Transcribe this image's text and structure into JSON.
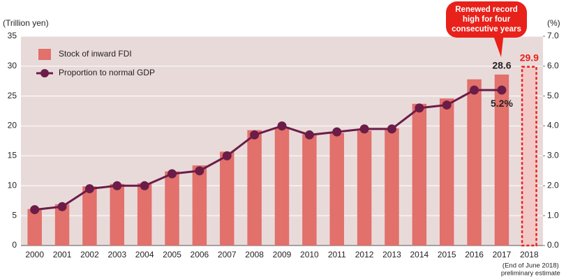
{
  "chart_data": {
    "type": "bar",
    "y_label": "(Trillion yen)",
    "y2_label": "(%)",
    "categories": [
      "2000",
      "2001",
      "2002",
      "2003",
      "2004",
      "2005",
      "2006",
      "2007",
      "2008",
      "2009",
      "2010",
      "2011",
      "2012",
      "2013",
      "2014",
      "2015",
      "2016",
      "2017",
      "2018"
    ],
    "category_notes": [
      null,
      null,
      null,
      null,
      null,
      null,
      null,
      null,
      null,
      null,
      null,
      null,
      null,
      null,
      null,
      null,
      null,
      null,
      [
        "(End of June 2018)",
        "preliminary estimate"
      ]
    ],
    "series": [
      {
        "name": "Stock of inward FDI",
        "type": "bar",
        "color": "#e2706b",
        "values": [
          6.1,
          6.9,
          9.9,
          10.3,
          10.4,
          12.4,
          13.4,
          15.7,
          19.3,
          19.8,
          18.6,
          18.8,
          19.2,
          19.6,
          23.7,
          24.6,
          27.8,
          28.6,
          29.9
        ],
        "labeled": [
          17,
          18
        ]
      },
      {
        "name": "Proportion to normal GDP",
        "type": "line",
        "axis": "y2",
        "color": "#6b1d48",
        "values": [
          1.2,
          1.3,
          1.9,
          2.0,
          2.0,
          2.4,
          2.5,
          3.0,
          3.7,
          4.0,
          3.7,
          3.8,
          3.9,
          3.9,
          4.6,
          4.7,
          5.2,
          5.2,
          null
        ],
        "value_labels": [
          null,
          null,
          null,
          null,
          null,
          null,
          null,
          null,
          null,
          null,
          null,
          null,
          null,
          null,
          null,
          null,
          null,
          "5.2%",
          null
        ]
      }
    ],
    "estimate_style": {
      "fill": "#f3c9c8",
      "stroke": "#e8211a"
    },
    "annotation": {
      "lines": [
        "Renewed record",
        "high for four",
        "consecutive years"
      ],
      "color": "#e8211a"
    },
    "ylim": [
      0,
      35
    ],
    "yticks": [
      0,
      5,
      10,
      15,
      20,
      25,
      30,
      35
    ],
    "y2lim": [
      0,
      7
    ],
    "y2ticks": [
      {
        "value": 0,
        "label": "0.0"
      },
      {
        "value": 1,
        "label": "1.0"
      },
      {
        "value": 2,
        "label": "2.0"
      },
      {
        "value": 3,
        "label": "3.0"
      },
      {
        "value": 4,
        "label": "4.0"
      },
      {
        "value": 5,
        "label": "5.0"
      },
      {
        "value": 6,
        "label": "6.0"
      },
      {
        "value": 7,
        "label": "7.0"
      }
    ],
    "grid": true,
    "plot_background": "#e9dada"
  }
}
